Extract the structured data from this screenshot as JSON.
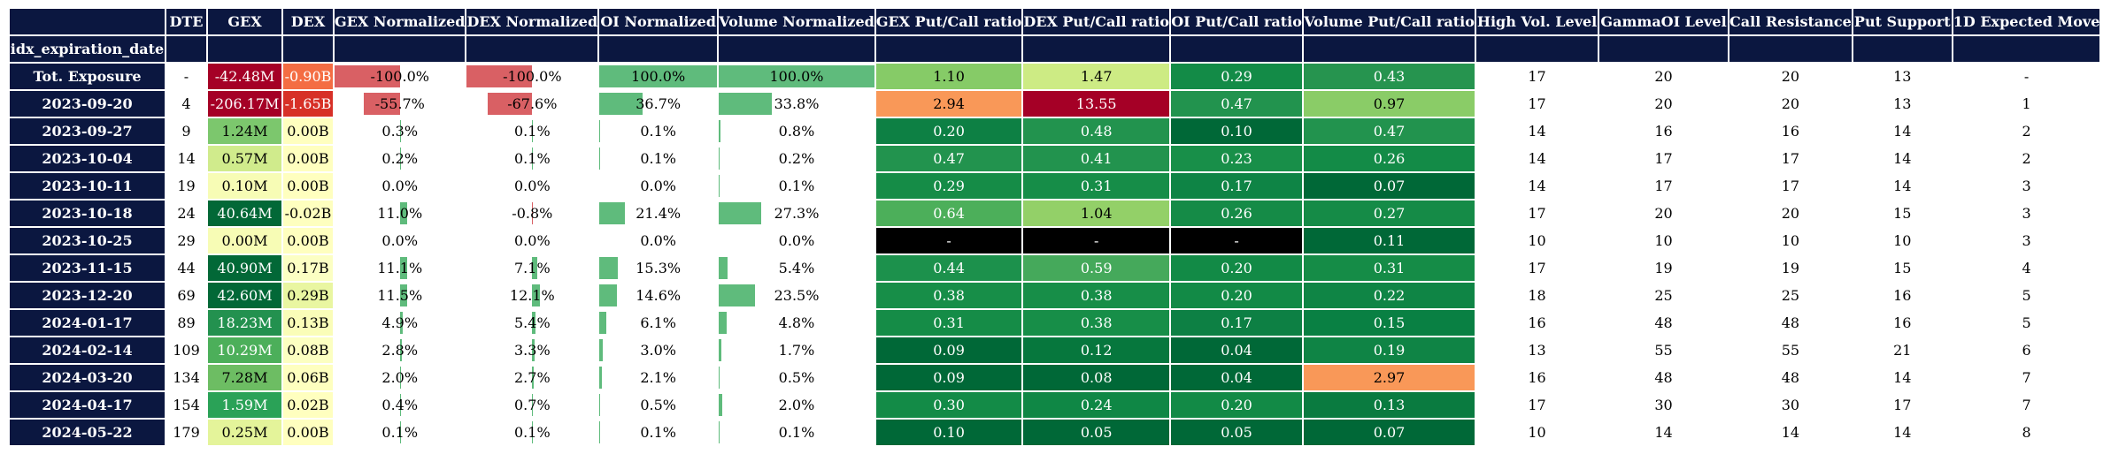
{
  "index_name": "idx_expiration_date",
  "columns": [
    "DTE",
    "GEX",
    "DEX",
    "GEX Normalized",
    "DEX Normalized",
    "OI Normalized",
    "Volume Normalized",
    "GEX Put/Call ratio",
    "DEX Put/Call ratio",
    "OI Put/Call ratio",
    "Volume Put/Call ratio",
    "High Vol. Level",
    "GammaOI Level",
    "Call Resistance",
    "Put Support",
    "1D Expected Move"
  ],
  "rows": [
    {
      "label": "Tot. Exposure",
      "cells": [
        "-",
        "-42.48M",
        "-0.90B",
        "-100.0%",
        "-100.0%",
        "100.0%",
        "100.0%",
        "1.10",
        "1.47",
        "0.29",
        "0.43",
        "17",
        "20",
        "20",
        "13",
        "-"
      ]
    },
    {
      "label": "2023-09-20",
      "cells": [
        "4",
        "-206.17M",
        "-1.65B",
        "-55.7%",
        "-67.6%",
        "36.7%",
        "33.8%",
        "2.94",
        "13.55",
        "0.47",
        "0.97",
        "17",
        "20",
        "20",
        "13",
        "1"
      ]
    },
    {
      "label": "2023-09-27",
      "cells": [
        "9",
        "1.24M",
        "0.00B",
        "0.3%",
        "0.1%",
        "0.1%",
        "0.8%",
        "0.20",
        "0.48",
        "0.10",
        "0.47",
        "14",
        "16",
        "16",
        "14",
        "2"
      ]
    },
    {
      "label": "2023-10-04",
      "cells": [
        "14",
        "0.57M",
        "0.00B",
        "0.2%",
        "0.1%",
        "0.1%",
        "0.2%",
        "0.47",
        "0.41",
        "0.23",
        "0.26",
        "14",
        "17",
        "17",
        "14",
        "2"
      ]
    },
    {
      "label": "2023-10-11",
      "cells": [
        "19",
        "0.10M",
        "0.00B",
        "0.0%",
        "0.0%",
        "0.0%",
        "0.1%",
        "0.29",
        "0.31",
        "0.17",
        "0.07",
        "14",
        "17",
        "17",
        "14",
        "3"
      ]
    },
    {
      "label": "2023-10-18",
      "cells": [
        "24",
        "40.64M",
        "-0.02B",
        "11.0%",
        "-0.8%",
        "21.4%",
        "27.3%",
        "0.64",
        "1.04",
        "0.26",
        "0.27",
        "17",
        "20",
        "20",
        "15",
        "3"
      ]
    },
    {
      "label": "2023-10-25",
      "cells": [
        "29",
        "0.00M",
        "0.00B",
        "0.0%",
        "0.0%",
        "0.0%",
        "0.0%",
        "-",
        "-",
        "-",
        "0.11",
        "10",
        "10",
        "10",
        "10",
        "3"
      ]
    },
    {
      "label": "2023-11-15",
      "cells": [
        "44",
        "40.90M",
        "0.17B",
        "11.1%",
        "7.1%",
        "15.3%",
        "5.4%",
        "0.44",
        "0.59",
        "0.20",
        "0.31",
        "17",
        "19",
        "19",
        "15",
        "4"
      ]
    },
    {
      "label": "2023-12-20",
      "cells": [
        "69",
        "42.60M",
        "0.29B",
        "11.5%",
        "12.1%",
        "14.6%",
        "23.5%",
        "0.38",
        "0.38",
        "0.20",
        "0.22",
        "18",
        "25",
        "25",
        "16",
        "5"
      ]
    },
    {
      "label": "2024-01-17",
      "cells": [
        "89",
        "18.23M",
        "0.13B",
        "4.9%",
        "5.4%",
        "6.1%",
        "4.8%",
        "0.31",
        "0.38",
        "0.17",
        "0.15",
        "16",
        "48",
        "48",
        "16",
        "5"
      ]
    },
    {
      "label": "2024-02-14",
      "cells": [
        "109",
        "10.29M",
        "0.08B",
        "2.8%",
        "3.3%",
        "3.0%",
        "1.7%",
        "0.09",
        "0.12",
        "0.04",
        "0.19",
        "13",
        "55",
        "55",
        "21",
        "6"
      ]
    },
    {
      "label": "2024-03-20",
      "cells": [
        "134",
        "7.28M",
        "0.06B",
        "2.0%",
        "2.7%",
        "2.1%",
        "0.5%",
        "0.09",
        "0.08",
        "0.04",
        "2.97",
        "16",
        "48",
        "48",
        "14",
        "7"
      ]
    },
    {
      "label": "2024-04-17",
      "cells": [
        "154",
        "1.59M",
        "0.02B",
        "0.4%",
        "0.7%",
        "0.5%",
        "2.0%",
        "0.30",
        "0.24",
        "0.20",
        "0.13",
        "17",
        "30",
        "30",
        "17",
        "7"
      ]
    },
    {
      "label": "2024-05-22",
      "cells": [
        "179",
        "0.25M",
        "0.00B",
        "0.1%",
        "0.1%",
        "0.1%",
        "0.1%",
        "0.10",
        "0.05",
        "0.05",
        "0.07",
        "10",
        "14",
        "14",
        "14",
        "8"
      ]
    }
  ],
  "bar_values": [
    [
      -100.0,
      -100.0,
      100.0,
      100.0
    ],
    [
      -55.7,
      -67.6,
      36.7,
      33.8
    ],
    [
      0.3,
      0.1,
      0.1,
      0.8
    ],
    [
      0.2,
      0.1,
      0.1,
      0.2
    ],
    [
      0.0,
      0.0,
      0.0,
      0.1
    ],
    [
      11.0,
      -0.8,
      21.4,
      27.3
    ],
    [
      0.0,
      0.0,
      0.0,
      0.0
    ],
    [
      11.1,
      7.1,
      15.3,
      5.4
    ],
    [
      11.5,
      12.1,
      14.6,
      23.5
    ],
    [
      4.9,
      5.4,
      6.1,
      4.8
    ],
    [
      2.8,
      3.3,
      3.0,
      1.7
    ],
    [
      2.0,
      2.7,
      2.1,
      0.5
    ],
    [
      0.4,
      0.7,
      0.5,
      2.0
    ],
    [
      0.1,
      0.1,
      0.1,
      0.1
    ]
  ],
  "colors": {
    "header_bg": "#0b1740",
    "bar_positive": "#5fbb7c",
    "bar_negative": "#d96064",
    "na_cell": "#000000"
  },
  "cell_colors": [
    [
      "#a50026",
      "#f46d43"
    ],
    [
      "#a50026",
      "#d73027"
    ],
    [
      "#7cc76d",
      "#ffffbf"
    ],
    [
      "#d0eb8c",
      "#ffffbf"
    ],
    [
      "#f7fcb5",
      "#ffffbf"
    ],
    [
      "#026837",
      "#feffbf"
    ],
    [
      "#f7fcb5",
      "#ffffbf"
    ],
    [
      "#026837",
      "#fcffc3"
    ],
    [
      "#026837",
      "#e9f6a1"
    ],
    [
      "#23914f",
      "#fafdb8"
    ],
    [
      "#4caf5a",
      "#fcffc1"
    ],
    [
      "#6dbd63",
      "#feffbf"
    ],
    [
      "#2aa257",
      "#ffffbf"
    ],
    [
      "#e4f49a",
      "#ffffbf"
    ]
  ],
  "ratio_colors": [
    [
      "#86cb67",
      "#cdeb84",
      "#138b47",
      "#26944f"
    ],
    [
      "#f99858",
      "#a50026",
      "#22934e",
      "#8acc67"
    ],
    [
      "#0d8044",
      "#22934e",
      "#006837",
      "#22934e"
    ],
    [
      "#22934e",
      "#22934e",
      "#188f49",
      "#138b47"
    ],
    [
      "#158c47",
      "#168d48",
      "#0e8445",
      "#006837"
    ],
    [
      "#4caf5a",
      "#93d068",
      "#158b47",
      "#158b47"
    ],
    [
      "#000000",
      "#000000",
      "#000000",
      "#006837"
    ],
    [
      "#1c914c",
      "#45a95b",
      "#128a46",
      "#158c47"
    ],
    [
      "#178e48",
      "#178e48",
      "#128a46",
      "#0f8545"
    ],
    [
      "#158c47",
      "#178e48",
      "#0d8044",
      "#098043"
    ],
    [
      "#006837",
      "#06773d",
      "#006837",
      "#0f8445"
    ],
    [
      "#006837",
      "#006837",
      "#006837",
      "#f99858"
    ],
    [
      "#138b47",
      "#0f8745",
      "#128a46",
      "#0a7b40"
    ],
    [
      "#006837",
      "#006837",
      "#006837",
      "#006837"
    ]
  ]
}
